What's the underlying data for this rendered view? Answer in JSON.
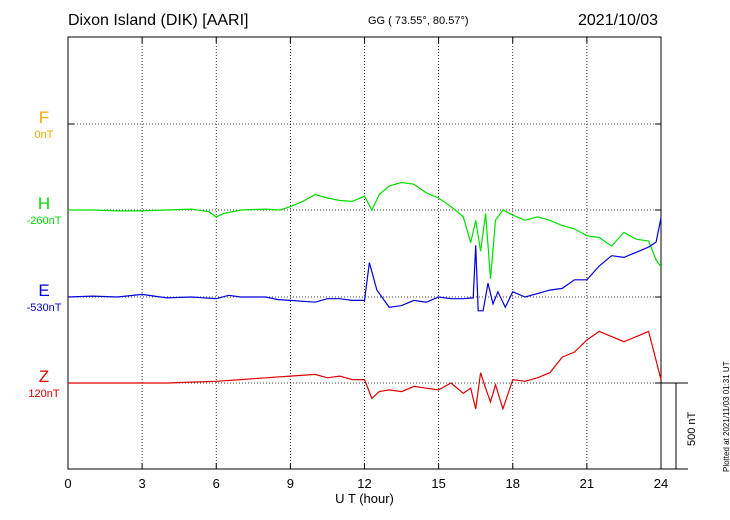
{
  "header": {
    "station": "Dixon Island (DIK)  [AARI]",
    "coords": "GG ( 73.55°,  80.57°)",
    "date": "2021/10/03"
  },
  "plotted_note": "Plotted at 2021/11/03 01:31  UT",
  "scale_label": "500 nT",
  "chart_data": {
    "type": "line",
    "xlabel": "U T (hour)",
    "xlim": [
      0,
      24
    ],
    "xticks": [
      "0",
      "3",
      "6",
      "9",
      "12",
      "15",
      "18",
      "21",
      "24"
    ],
    "scale_bar_nT": 500,
    "grid": true,
    "series": [
      {
        "name": "F",
        "baseline": "0nT",
        "color": "#ffa500",
        "x": [],
        "y": []
      },
      {
        "name": "H",
        "baseline": "-260nT",
        "color": "#00dd00",
        "x": [
          0,
          1,
          2,
          3,
          4,
          5,
          5.7,
          6,
          6.3,
          7,
          8,
          8.6,
          9,
          9.5,
          10,
          10.5,
          11,
          11.5,
          12,
          12.3,
          12.6,
          13,
          13.5,
          14,
          14.5,
          15,
          15.5,
          16,
          16.3,
          16.5,
          16.7,
          16.9,
          17.1,
          17.3,
          17.6,
          18,
          18.5,
          19,
          19.5,
          20,
          20.5,
          21,
          21.5,
          22,
          22.5,
          23,
          23.5,
          23.8,
          24
        ],
        "y": [
          0,
          0,
          -5,
          -5,
          0,
          5,
          -10,
          -40,
          -20,
          0,
          5,
          0,
          20,
          50,
          90,
          70,
          55,
          50,
          80,
          0,
          90,
          140,
          160,
          150,
          100,
          70,
          20,
          -40,
          -190,
          -60,
          -240,
          -20,
          -400,
          -60,
          0,
          -30,
          -60,
          -40,
          -60,
          -90,
          -110,
          -150,
          -160,
          -210,
          -130,
          -170,
          -180,
          -290,
          -330
        ]
      },
      {
        "name": "E",
        "baseline": "-530nT",
        "color": "#0000dd",
        "x": [
          0,
          1,
          2,
          3,
          4,
          5,
          6,
          6.5,
          7,
          8,
          8.5,
          9,
          10,
          10.5,
          11,
          11.5,
          12,
          12.2,
          12.5,
          13,
          13.5,
          14,
          14.5,
          15,
          15.5,
          16,
          16.4,
          16.5,
          16.6,
          16.8,
          17,
          17.2,
          17.4,
          17.7,
          18,
          18.5,
          19,
          19.5,
          20,
          20.5,
          21,
          21.5,
          22,
          22.5,
          23,
          23.5,
          23.8,
          24
        ],
        "y": [
          0,
          5,
          0,
          15,
          -5,
          0,
          -10,
          10,
          0,
          0,
          -15,
          -20,
          -30,
          -10,
          -10,
          -20,
          -20,
          200,
          40,
          -60,
          -50,
          -20,
          -30,
          0,
          -10,
          -10,
          -5,
          300,
          -80,
          -80,
          80,
          -40,
          30,
          -60,
          30,
          0,
          20,
          40,
          50,
          100,
          100,
          180,
          240,
          230,
          260,
          290,
          320,
          460
        ]
      },
      {
        "name": "Z",
        "baseline": "120nT",
        "color": "#dd0000",
        "x": [
          0,
          1,
          2,
          3,
          4,
          5,
          6,
          7,
          8,
          9,
          10,
          10.5,
          11,
          11.5,
          12,
          12.3,
          12.6,
          13,
          13.5,
          14,
          14.5,
          15,
          15.5,
          16,
          16.3,
          16.5,
          16.7,
          16.9,
          17.1,
          17.3,
          17.6,
          18,
          18.5,
          19,
          19.5,
          20,
          20.5,
          21,
          21.5,
          22,
          22.5,
          23,
          23.5,
          24
        ],
        "y": [
          0,
          0,
          0,
          0,
          0,
          5,
          10,
          20,
          30,
          40,
          50,
          30,
          40,
          20,
          20,
          -90,
          -50,
          -40,
          -50,
          -20,
          -30,
          -40,
          0,
          -60,
          -30,
          -150,
          60,
          -30,
          -110,
          -10,
          -150,
          20,
          10,
          30,
          60,
          150,
          180,
          250,
          300,
          270,
          240,
          270,
          300,
          20
        ]
      }
    ]
  }
}
